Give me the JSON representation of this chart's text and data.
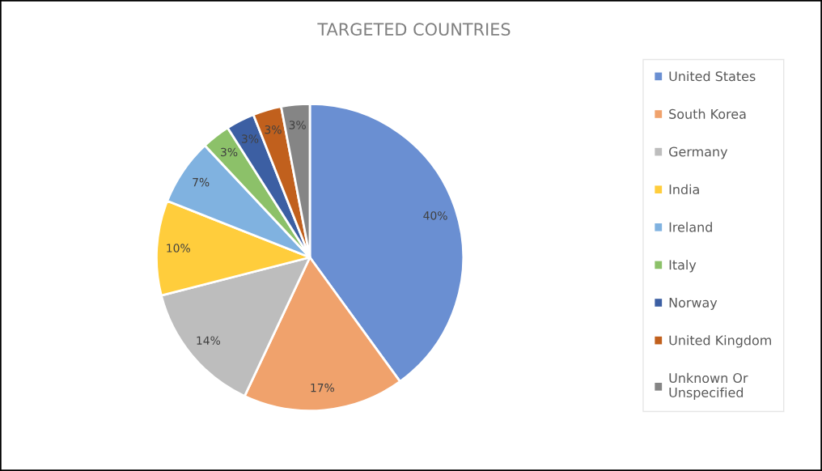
{
  "chart_data": {
    "type": "pie",
    "title": "TARGETED COUNTRIES",
    "categories": [
      "United States",
      "South Korea",
      "Germany",
      "India",
      "Ireland",
      "Italy",
      "Norway",
      "United Kingdom",
      "Unknown Or Unspecified"
    ],
    "values": [
      40,
      17,
      14,
      10,
      7,
      3,
      3,
      3,
      3
    ],
    "colors": [
      "#6a8fd2",
      "#f0a26c",
      "#bdbdbd",
      "#ffcd3c",
      "#80b2e0",
      "#8cc169",
      "#3c5fa3",
      "#c1601d",
      "#858585"
    ],
    "value_labels": [
      "40%",
      "17%",
      "14%",
      "10%",
      "7%",
      "3%",
      "3%",
      "3%",
      "3%"
    ],
    "legend": "right"
  }
}
